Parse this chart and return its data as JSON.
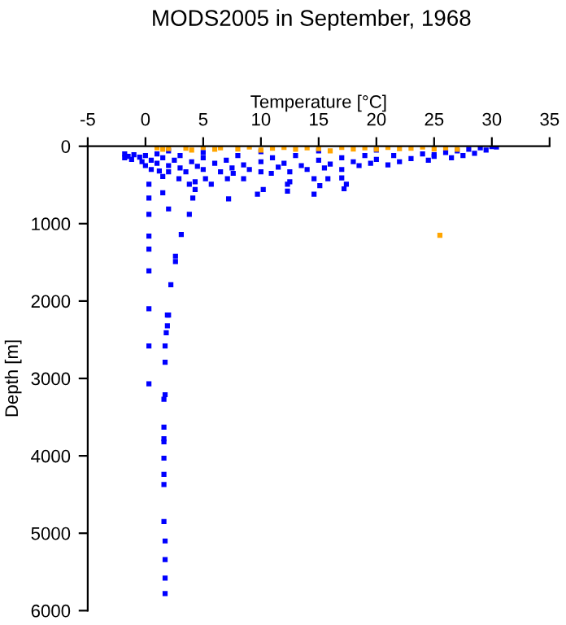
{
  "chart_data": {
    "type": "scatter",
    "title": "MODS2005 in September, 1968",
    "xlabel": "Temperature [°C]",
    "ylabel": "Depth [m]",
    "xlim": [
      -5,
      35
    ],
    "xticks": [
      -5,
      0,
      5,
      10,
      15,
      20,
      25,
      30,
      35
    ],
    "ylim": [
      6000,
      0
    ],
    "yticks": [
      0,
      1000,
      2000,
      3000,
      4000,
      5000,
      6000
    ],
    "marker": "square",
    "grid": false,
    "legend": false,
    "series": [
      {
        "color": "#0000ff",
        "x": [
          -1.8,
          -1.8,
          -1.5,
          -1.2,
          -1,
          -0.5,
          -0.3,
          0,
          0,
          0.5,
          0.5,
          1,
          1,
          1.2,
          1.5,
          2,
          2,
          2.5,
          3,
          3,
          3.5,
          4,
          4.5,
          5,
          5,
          6,
          6.5,
          7,
          7.5,
          8,
          8.5,
          9,
          10,
          10,
          11,
          11.5,
          12,
          12.5,
          13,
          13.5,
          14,
          15,
          15.5,
          16,
          17,
          17,
          18,
          18.5,
          19,
          19.5,
          20,
          21,
          21.5,
          22,
          23,
          24,
          24.5,
          25,
          26,
          26.5,
          27,
          27.5,
          28,
          28.5,
          29,
          29.5,
          30,
          30.4,
          20,
          15,
          10,
          5,
          2,
          25,
          0.3,
          0.3,
          0.3,
          0.3,
          0.3,
          0.3,
          0.3,
          2.0,
          1.5,
          3.1,
          2.6,
          2.6,
          2.2,
          2.0,
          3.8,
          4.1,
          4.3,
          3.8,
          5.7,
          7.1,
          7.2,
          8.5,
          9.7,
          10.2,
          10.9,
          12.3,
          12.3,
          12.5,
          14.6,
          14.6,
          15.8,
          15.1,
          17.0,
          17.2,
          17.4,
          1.5,
          2.9,
          4.3,
          5.2,
          7.6,
          1.9,
          1.9,
          1.8,
          1.7,
          1.7,
          1.7,
          1.6,
          1.6,
          1.6,
          1.6,
          1.6,
          1.6,
          1.6,
          1.6,
          1.7,
          1.7,
          1.7,
          1.7,
          0.3,
          0.3
        ],
        "values": [
          100,
          150,
          130,
          170,
          110,
          140,
          200,
          120,
          250,
          180,
          300,
          100,
          220,
          320,
          150,
          250,
          330,
          180,
          120,
          280,
          330,
          200,
          260,
          150,
          300,
          220,
          330,
          180,
          280,
          120,
          240,
          300,
          200,
          330,
          150,
          270,
          220,
          330,
          120,
          250,
          300,
          180,
          280,
          230,
          150,
          300,
          200,
          250,
          120,
          220,
          170,
          240,
          120,
          200,
          160,
          100,
          180,
          130,
          80,
          150,
          60,
          120,
          40,
          90,
          20,
          50,
          5,
          10,
          50,
          60,
          70,
          80,
          60,
          110,
          490,
          670,
          880,
          1160,
          1330,
          1610,
          2100,
          810,
          600,
          1140,
          1420,
          1490,
          1790,
          2180,
          880,
          670,
          560,
          490,
          490,
          420,
          680,
          420,
          620,
          560,
          350,
          490,
          580,
          460,
          420,
          620,
          420,
          510,
          410,
          550,
          490,
          390,
          420,
          460,
          420,
          350,
          2180,
          2320,
          2410,
          2580,
          2790,
          3210,
          3270,
          3630,
          3780,
          3820,
          4030,
          4240,
          4370,
          4850,
          5100,
          5340,
          5580,
          5780,
          2580,
          3070
        ]
      },
      {
        "color": "#ffa500",
        "x": [
          1,
          1.5,
          2,
          3.5,
          4,
          5,
          6,
          6.5,
          8,
          9,
          10,
          11,
          12,
          13,
          14,
          15,
          16,
          17,
          18,
          19,
          20,
          21,
          22,
          23,
          24,
          25,
          26,
          27,
          25.5
        ],
        "values": [
          20,
          40,
          30,
          25,
          50,
          15,
          40,
          20,
          35,
          10,
          50,
          25,
          15,
          40,
          20,
          30,
          60,
          15,
          35,
          20,
          40,
          15,
          30,
          25,
          10,
          35,
          20,
          40,
          1150
        ]
      }
    ]
  }
}
